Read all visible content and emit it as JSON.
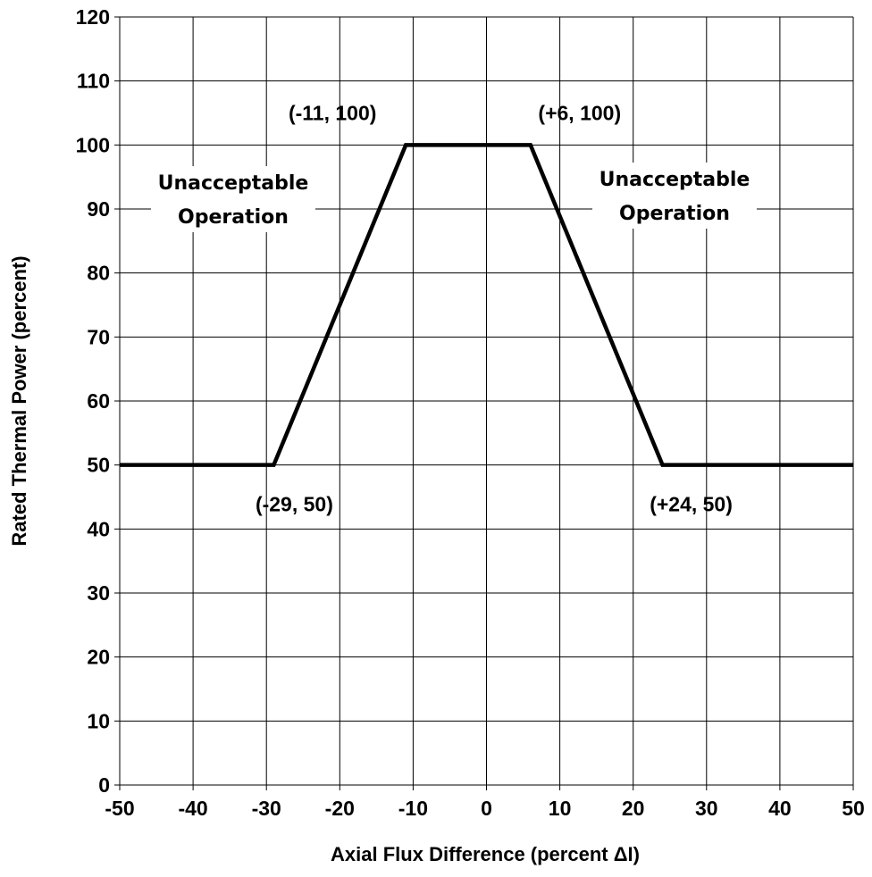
{
  "chart_data": {
    "type": "line",
    "title": "",
    "xlabel": "Axial Flux Difference (percent ΔI)",
    "ylabel": "Rated Thermal Power (percent)",
    "xlim": [
      -50,
      50
    ],
    "ylim": [
      0,
      120
    ],
    "x_ticks": [
      -50,
      -40,
      -30,
      -20,
      -10,
      0,
      10,
      20,
      30,
      40,
      50
    ],
    "y_ticks": [
      0,
      10,
      20,
      30,
      40,
      50,
      60,
      70,
      80,
      90,
      100,
      110,
      120
    ],
    "grid": true,
    "series": [
      {
        "x": [
          -50,
          -29,
          -11,
          6,
          24,
          50
        ],
        "y": [
          50,
          50,
          100,
          100,
          50,
          50
        ]
      }
    ],
    "point_labels": [
      {
        "text": "(-11, 100)",
        "x": -11,
        "y": 100
      },
      {
        "text": "(+6, 100)",
        "x": 6,
        "y": 100
      },
      {
        "text": "(-29, 50)",
        "x": -29,
        "y": 50
      },
      {
        "text": "(+24, 50)",
        "x": 24,
        "y": 50
      }
    ],
    "region_labels": [
      {
        "lines": [
          "Unacceptable",
          "Operation"
        ]
      },
      {
        "lines": [
          "Unacceptable",
          "Operation"
        ]
      }
    ]
  }
}
